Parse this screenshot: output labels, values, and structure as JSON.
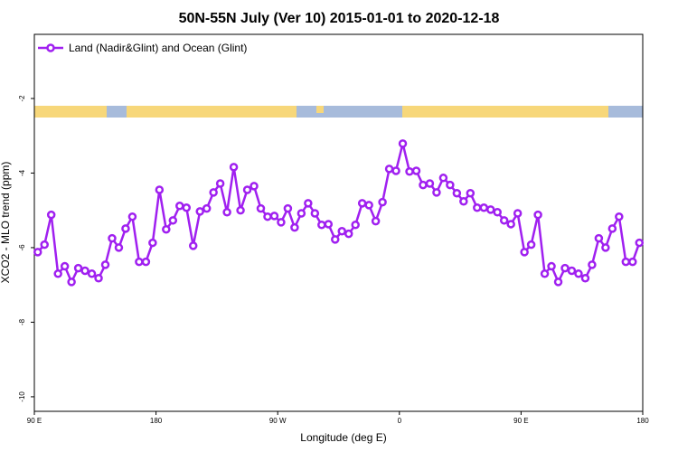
{
  "chart_data": {
    "type": "line",
    "title": "50N-55N July (Ver 10)   2015-01-01 to 2020-12-18",
    "x_label": "Longitude (deg E)",
    "y_label": "XCO2 - MLO trend (ppm)",
    "x": [
      92.5,
      97.5,
      102.5,
      107.5,
      112.5,
      117.5,
      122.5,
      127.5,
      132.5,
      137.5,
      142.5,
      147.5,
      152.5,
      157.5,
      162.5,
      167.5,
      172.5,
      177.5,
      182.5,
      187.5,
      192.5,
      197.5,
      202.5,
      207.5,
      212.5,
      217.5,
      222.5,
      227.5,
      232.5,
      237.5,
      242.5,
      247.5,
      252.5,
      257.5,
      262.5,
      267.5,
      272.5,
      277.5,
      282.5,
      287.5,
      292.5,
      297.5,
      302.5,
      307.5,
      312.5,
      317.5,
      322.5,
      327.5,
      332.5,
      337.5,
      342.5,
      347.5,
      352.5,
      357.5,
      362.5,
      367.5,
      372.5,
      377.5,
      382.5,
      387.5,
      392.5,
      397.5,
      402.5,
      407.5,
      412.5,
      417.5,
      422.5,
      427.5,
      432.5,
      437.5,
      442.5,
      447.5,
      452.5,
      457.5,
      462.5,
      467.5,
      472.5,
      477.5,
      482.5,
      487.5,
      492.5,
      497.5,
      502.5,
      507.5,
      512.5,
      517.5,
      522.5,
      527.5,
      532.5,
      537.5
    ],
    "series": [
      {
        "name": "Land (Nadir&Glint) and Ocean (Glint)",
        "color": "#a020f0",
        "values": [
          -6.12,
          -5.92,
          -5.12,
          -6.7,
          -6.5,
          -6.92,
          -6.55,
          -6.62,
          -6.7,
          -6.82,
          -6.46,
          -5.75,
          -6.0,
          -5.49,
          -5.17,
          -6.38,
          -6.38,
          -5.87,
          -4.45,
          -5.51,
          -5.27,
          -4.88,
          -4.93,
          -5.95,
          -5.03,
          -4.95,
          -4.52,
          -4.28,
          -5.05,
          -3.84,
          -5.0,
          -4.45,
          -4.35,
          -4.95,
          -5.17,
          -5.15,
          -5.32,
          -4.95,
          -5.46,
          -5.08,
          -4.81,
          -5.08,
          -5.39,
          -5.37,
          -5.78,
          -5.56,
          -5.63,
          -5.39,
          -4.81,
          -4.86,
          -5.29,
          -4.78,
          -3.89,
          -3.94,
          -3.21,
          -3.96,
          -3.94,
          -4.32,
          -4.28,
          -4.52,
          -4.13,
          -4.32,
          -4.54,
          -4.76,
          -4.54,
          -4.93,
          -4.93,
          -4.98,
          -5.05,
          -5.27,
          -5.37,
          -5.08,
          -6.12,
          -5.92,
          -5.12,
          -6.7,
          -6.5,
          -6.92,
          -6.55,
          -6.62,
          -6.7,
          -6.82,
          -6.46,
          -5.75,
          -6.0,
          -5.49,
          -5.17,
          -6.38,
          -6.38,
          -5.87
        ]
      }
    ],
    "xlim": [
      90,
      540
    ],
    "xticks": [
      {
        "value": 90,
        "label": "90 E"
      },
      180,
      {
        "value": 270,
        "label": "90 W"
      },
      {
        "value": 360,
        "label": "0"
      },
      {
        "value": 450,
        "label": "90 E"
      },
      180
    ],
    "ylim": [
      -10.39,
      -0.28
    ],
    "yticks": [
      -2,
      -4,
      -6,
      -8,
      -10
    ],
    "grid": false,
    "legend": "top-left"
  }
}
